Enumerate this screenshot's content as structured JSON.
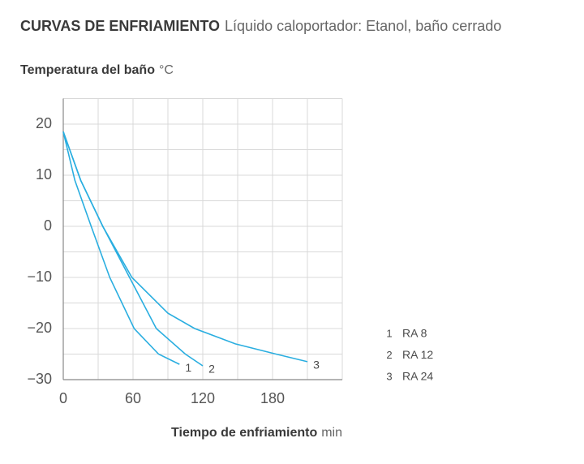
{
  "chart_data": {
    "type": "line",
    "title": "CURVAS DE ENFRIAMIENTO",
    "subtitle": "Líquido caloportador: Etanol, baño cerrado",
    "y_label": "Temperatura del baño",
    "y_unit": "°C",
    "x_label": "Tiempo de enfriamiento",
    "x_unit": "min",
    "xlim": [
      0,
      240
    ],
    "ylim": [
      -30,
      25
    ],
    "xticks": [
      0,
      60,
      120,
      180
    ],
    "yticks": [
      20,
      10,
      0,
      {
        "value": -10,
        "label": "−10"
      },
      {
        "value": -20,
        "label": "−20"
      },
      {
        "value": -30,
        "label": "−30"
      }
    ],
    "xminorticks": [
      30,
      90,
      150,
      210,
      240
    ],
    "yminorticks": [
      25,
      15,
      5,
      -5,
      -15,
      -25
    ],
    "grid": true,
    "series": [
      {
        "name": "RA 8",
        "label": "1",
        "color": "#2aaee0",
        "x": [
          0,
          10,
          24,
          40,
          61,
          82,
          100
        ],
        "values": [
          18.5,
          9,
          0,
          -10,
          -20,
          -25,
          -27
        ]
      },
      {
        "name": "RA 12",
        "label": "2",
        "color": "#2aaee0",
        "x": [
          0,
          15,
          34,
          57,
          80,
          105,
          120
        ],
        "values": [
          18.5,
          9,
          0,
          -10,
          -20,
          -25,
          -27.3
        ]
      },
      {
        "name": "RA 24",
        "label": "3",
        "color": "#2aaee0",
        "x": [
          0,
          15,
          34,
          59,
          90,
          113,
          148,
          183,
          210
        ],
        "values": [
          18.5,
          9,
          0,
          -10,
          -17,
          -20,
          -23,
          -25,
          -26.5
        ]
      }
    ]
  }
}
